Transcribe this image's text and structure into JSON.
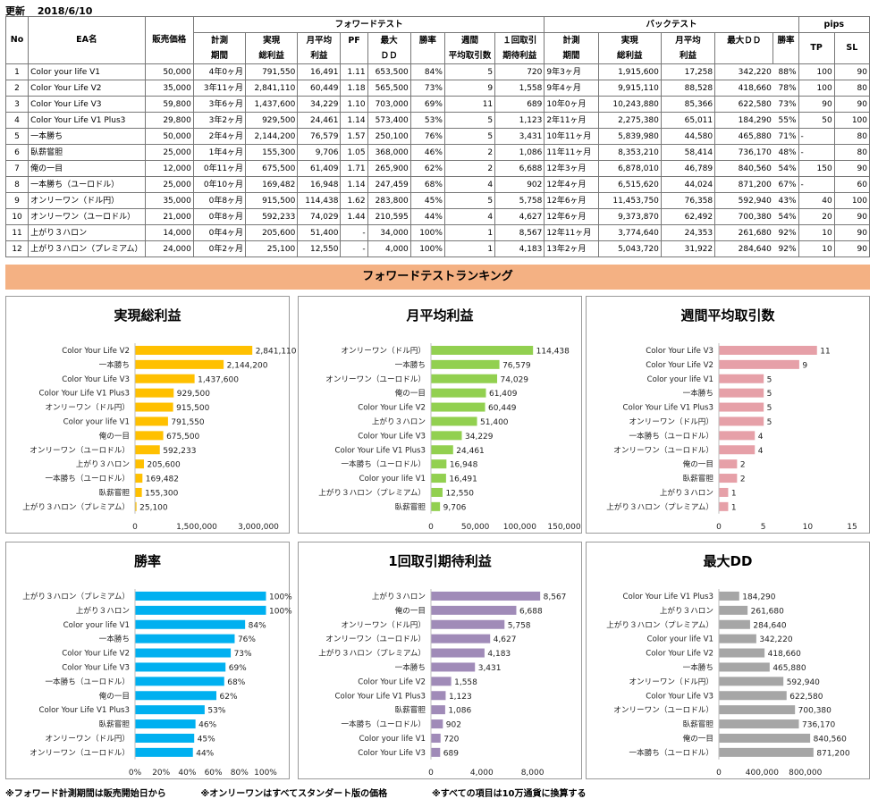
{
  "header": {
    "updated_label": "更新",
    "updated_date": "2018/6/10"
  },
  "table": {
    "group_headers": {
      "forward": "フォワードテスト",
      "back": "バックテスト",
      "pips": "pips"
    },
    "col_no": "No",
    "col_name": "EA名",
    "col_price": "販売価格",
    "fw_cols": [
      [
        "計測",
        "期間"
      ],
      [
        "実現",
        "総利益"
      ],
      [
        "月平均",
        "利益"
      ],
      [
        "PF",
        ""
      ],
      [
        "最大",
        "ＤＤ"
      ],
      [
        "勝率",
        ""
      ],
      [
        "週間",
        "平均取引数"
      ],
      [
        "１回取引",
        "期待利益"
      ]
    ],
    "bt_cols": [
      [
        "計測",
        "期間"
      ],
      [
        "実現",
        "総利益"
      ],
      [
        "月平均",
        "利益"
      ],
      [
        "最大ＤＤ",
        ""
      ],
      [
        "勝率",
        ""
      ]
    ],
    "pips_cols": [
      "TP",
      "SL"
    ],
    "rows": [
      {
        "no": "1",
        "name": "Color your life V1",
        "price": "50,000",
        "fw_period": "4年0ヶ月",
        "fw_profit": "791,550",
        "fw_monthly": "16,491",
        "pf": "1.11",
        "fw_dd": "653,500",
        "fw_win": "84%",
        "weekly": "5",
        "expected": "720",
        "bt_period": "9年3ヶ月",
        "bt_profit": "1,915,600",
        "bt_monthly": "17,258",
        "bt_dd": "342,220",
        "bt_win": "88%",
        "tp": "100",
        "sl": "90"
      },
      {
        "no": "2",
        "name": "Color Your Life V2",
        "price": "35,000",
        "fw_period": "3年11ヶ月",
        "fw_profit": "2,841,110",
        "fw_monthly": "60,449",
        "pf": "1.18",
        "fw_dd": "565,500",
        "fw_win": "73%",
        "weekly": "9",
        "expected": "1,558",
        "bt_period": "9年4ヶ月",
        "bt_profit": "9,915,110",
        "bt_monthly": "88,528",
        "bt_dd": "418,660",
        "bt_win": "78%",
        "tp": "100",
        "sl": "80"
      },
      {
        "no": "3",
        "name": "Color Your Life V3",
        "price": "59,800",
        "fw_period": "3年6ヶ月",
        "fw_profit": "1,437,600",
        "fw_monthly": "34,229",
        "pf": "1.10",
        "fw_dd": "703,000",
        "fw_win": "69%",
        "weekly": "11",
        "expected": "689",
        "bt_period": "10年0ヶ月",
        "bt_profit": "10,243,880",
        "bt_monthly": "85,366",
        "bt_dd": "622,580",
        "bt_win": "73%",
        "tp": "90",
        "sl": "90"
      },
      {
        "no": "4",
        "name": "Color Your Life V1 Plus3",
        "price": "29,800",
        "fw_period": "3年2ヶ月",
        "fw_profit": "929,500",
        "fw_monthly": "24,461",
        "pf": "1.14",
        "fw_dd": "573,400",
        "fw_win": "53%",
        "weekly": "5",
        "expected": "1,123",
        "bt_period": "2年11ヶ月",
        "bt_profit": "2,275,380",
        "bt_monthly": "65,011",
        "bt_dd": "184,290",
        "bt_win": "55%",
        "tp": "50",
        "sl": "100"
      },
      {
        "no": "5",
        "name": "一本勝ち",
        "price": "50,000",
        "fw_period": "2年4ヶ月",
        "fw_profit": "2,144,200",
        "fw_monthly": "76,579",
        "pf": "1.57",
        "fw_dd": "250,100",
        "fw_win": "76%",
        "weekly": "5",
        "expected": "3,431",
        "bt_period": "10年11ヶ月",
        "bt_profit": "5,839,980",
        "bt_monthly": "44,580",
        "bt_dd": "465,880",
        "bt_win": "71%",
        "tp": "-",
        "sl": "80"
      },
      {
        "no": "6",
        "name": "臥薪嘗胆",
        "price": "25,000",
        "fw_period": "1年4ヶ月",
        "fw_profit": "155,300",
        "fw_monthly": "9,706",
        "pf": "1.05",
        "fw_dd": "368,000",
        "fw_win": "46%",
        "weekly": "2",
        "expected": "1,086",
        "bt_period": "11年11ヶ月",
        "bt_profit": "8,353,210",
        "bt_monthly": "58,414",
        "bt_dd": "736,170",
        "bt_win": "48%",
        "tp": "-",
        "sl": "80"
      },
      {
        "no": "7",
        "name": "俺の一目",
        "price": "12,000",
        "fw_period": "0年11ヶ月",
        "fw_profit": "675,500",
        "fw_monthly": "61,409",
        "pf": "1.71",
        "fw_dd": "265,900",
        "fw_win": "62%",
        "weekly": "2",
        "expected": "6,688",
        "bt_period": "12年3ヶ月",
        "bt_profit": "6,878,010",
        "bt_monthly": "46,789",
        "bt_dd": "840,560",
        "bt_win": "54%",
        "tp": "150",
        "sl": "90"
      },
      {
        "no": "8",
        "name": "一本勝ち（ユーロドル）",
        "price": "25,000",
        "fw_period": "0年10ヶ月",
        "fw_profit": "169,482",
        "fw_monthly": "16,948",
        "pf": "1.14",
        "fw_dd": "247,459",
        "fw_win": "68%",
        "weekly": "4",
        "expected": "902",
        "bt_period": "12年4ヶ月",
        "bt_profit": "6,515,620",
        "bt_monthly": "44,024",
        "bt_dd": "871,200",
        "bt_win": "67%",
        "tp": "-",
        "sl": "60"
      },
      {
        "no": "9",
        "name": "オンリーワン（ドル円）",
        "price": "35,000",
        "fw_period": "0年8ヶ月",
        "fw_profit": "915,500",
        "fw_monthly": "114,438",
        "pf": "1.62",
        "fw_dd": "283,800",
        "fw_win": "45%",
        "weekly": "5",
        "expected": "5,758",
        "bt_period": "12年6ヶ月",
        "bt_profit": "11,453,750",
        "bt_monthly": "76,358",
        "bt_dd": "592,940",
        "bt_win": "43%",
        "tp": "40",
        "sl": "100"
      },
      {
        "no": "10",
        "name": "オンリーワン（ユーロドル）",
        "price": "21,000",
        "fw_period": "0年8ヶ月",
        "fw_profit": "592,233",
        "fw_monthly": "74,029",
        "pf": "1.44",
        "fw_dd": "210,595",
        "fw_win": "44%",
        "weekly": "4",
        "expected": "4,627",
        "bt_period": "12年6ヶ月",
        "bt_profit": "9,373,870",
        "bt_monthly": "62,492",
        "bt_dd": "700,380",
        "bt_win": "54%",
        "tp": "20",
        "sl": "90"
      },
      {
        "no": "11",
        "name": "上がり３ハロン",
        "price": "14,000",
        "fw_period": "0年4ヶ月",
        "fw_profit": "205,600",
        "fw_monthly": "51,400",
        "pf": "-",
        "fw_dd": "34,000",
        "fw_win": "100%",
        "weekly": "1",
        "expected": "8,567",
        "bt_period": "12年11ヶ月",
        "bt_profit": "3,774,640",
        "bt_monthly": "24,353",
        "bt_dd": "261,680",
        "bt_win": "92%",
        "tp": "10",
        "sl": "90"
      },
      {
        "no": "12",
        "name": "上がり３ハロン（プレミアム）",
        "price": "24,000",
        "fw_period": "0年2ヶ月",
        "fw_profit": "25,100",
        "fw_monthly": "12,550",
        "pf": "-",
        "fw_dd": "4,000",
        "fw_win": "100%",
        "weekly": "1",
        "expected": "4,183",
        "bt_period": "13年2ヶ月",
        "bt_profit": "5,043,720",
        "bt_monthly": "31,922",
        "bt_dd": "284,640",
        "bt_win": "92%",
        "tp": "10",
        "sl": "90"
      }
    ]
  },
  "banner": "フォワードテストランキング",
  "footnotes": [
    "※フォワード計測期間は販売開始日から",
    "※オンリーワンはすべてスタンダート版の価格",
    "※すべての項目は10万通貨に換算する"
  ],
  "chart_data": [
    {
      "id": "c1",
      "type": "bar",
      "orientation": "horizontal",
      "title": "実現総利益",
      "color": "#ffc000",
      "categories": [
        "Color Your Life V2",
        "一本勝ち",
        "Color Your Life V3",
        "Color Your Life V1 Plus3",
        "オンリーワン（ドル円）",
        "Color your life V1",
        "俺の一目",
        "オンリーワン（ユーロドル）",
        "上がり３ハロン",
        "一本勝ち（ユーロドル）",
        "臥薪嘗胆",
        "上がり３ハロン（プレミアム）"
      ],
      "values": [
        2841110,
        2144200,
        1437600,
        929500,
        915500,
        791550,
        675500,
        592233,
        205600,
        169482,
        155300,
        25100
      ],
      "labels": [
        "2,841,110",
        "2,144,200",
        "1,437,600",
        "929,500",
        "915,500",
        "791,550",
        "675,500",
        "592,233",
        "205,600",
        "169,482",
        "155,300",
        "25,100"
      ],
      "xlim": [
        0,
        3000000
      ],
      "ticks": [
        0,
        1500000,
        3000000
      ],
      "tick_labels": [
        "0",
        "1,500,000",
        "3,000,000"
      ]
    },
    {
      "id": "c2",
      "type": "bar",
      "orientation": "horizontal",
      "title": "月平均利益",
      "color": "#92d050",
      "categories": [
        "オンリーワン（ドル円）",
        "一本勝ち",
        "オンリーワン（ユーロドル）",
        "俺の一目",
        "Color Your Life V2",
        "上がり３ハロン",
        "Color Your Life V3",
        "Color Your Life V1 Plus3",
        "一本勝ち（ユーロドル）",
        "Color your life V1",
        "上がり３ハロン（プレミアム）",
        "臥薪嘗胆"
      ],
      "values": [
        114438,
        76579,
        74029,
        61409,
        60449,
        51400,
        34229,
        24461,
        16948,
        16491,
        12550,
        9706
      ],
      "labels": [
        "114,438",
        "76,579",
        "74,029",
        "61,409",
        "60,449",
        "51,400",
        "34,229",
        "24,461",
        "16,948",
        "16,491",
        "12,550",
        "9,706"
      ],
      "xlim": [
        0,
        150000
      ],
      "ticks": [
        0,
        50000,
        100000,
        150000
      ],
      "tick_labels": [
        "0",
        "50,000",
        "100,000",
        "150,000"
      ]
    },
    {
      "id": "c3",
      "type": "bar",
      "orientation": "horizontal",
      "title": "週間平均取引数",
      "color": "#e6a0a8",
      "categories": [
        "Color Your Life V3",
        "Color Your Life V2",
        "Color your life V1",
        "一本勝ち",
        "Color Your Life V1 Plus3",
        "オンリーワン（ドル円）",
        "一本勝ち（ユーロドル）",
        "オンリーワン（ユーロドル）",
        "俺の一目",
        "臥薪嘗胆",
        "上がり３ハロン",
        "上がり３ハロン（プレミアム）"
      ],
      "values": [
        11,
        9,
        5,
        5,
        5,
        5,
        4,
        4,
        2,
        2,
        1,
        1
      ],
      "labels": [
        "11",
        "9",
        "5",
        "5",
        "5",
        "5",
        "4",
        "4",
        "2",
        "2",
        "1",
        "1"
      ],
      "xlim": [
        0,
        15
      ],
      "ticks": [
        0,
        5,
        10,
        15
      ],
      "tick_labels": [
        "0",
        "5",
        "10",
        "15"
      ]
    },
    {
      "id": "c4",
      "type": "bar",
      "orientation": "horizontal",
      "title": "勝率",
      "color": "#00b0f0",
      "categories": [
        "上がり３ハロン（プレミアム）",
        "上がり３ハロン",
        "Color your life V1",
        "一本勝ち",
        "Color Your Life V2",
        "Color Your Life V3",
        "一本勝ち（ユーロドル）",
        "俺の一目",
        "Color Your Life V1 Plus3",
        "臥薪嘗胆",
        "オンリーワン（ドル円）",
        "オンリーワン（ユーロドル）"
      ],
      "values": [
        100,
        100,
        84,
        76,
        73,
        69,
        68,
        62,
        53,
        46,
        45,
        44
      ],
      "labels": [
        "100%",
        "100%",
        "84%",
        "76%",
        "73%",
        "69%",
        "68%",
        "62%",
        "53%",
        "46%",
        "45%",
        "44%"
      ],
      "xlim": [
        0,
        100
      ],
      "ticks": [
        0,
        20,
        40,
        60,
        80,
        100
      ],
      "tick_labels": [
        "0%",
        "20%",
        "40%",
        "60%",
        "80%",
        "100%"
      ]
    },
    {
      "id": "c5",
      "type": "bar",
      "orientation": "horizontal",
      "title": "1回取引期待利益",
      "color": "#a08bb8",
      "categories": [
        "上がり３ハロン",
        "俺の一目",
        "オンリーワン（ドル円）",
        "オンリーワン（ユーロドル）",
        "上がり３ハロン（プレミアム）",
        "一本勝ち",
        "Color Your Life V2",
        "Color Your Life V1 Plus3",
        "臥薪嘗胆",
        "一本勝ち（ユーロドル）",
        "Color your life V1",
        "Color Your Life V3"
      ],
      "values": [
        8567,
        6688,
        5758,
        4627,
        4183,
        3431,
        1558,
        1123,
        1086,
        902,
        720,
        689
      ],
      "labels": [
        "8,567",
        "6,688",
        "5,758",
        "4,627",
        "4,183",
        "3,431",
        "1,558",
        "1,123",
        "1,086",
        "902",
        "720",
        "689"
      ],
      "xlim": [
        0,
        10000
      ],
      "ticks": [
        0,
        4000,
        8000
      ],
      "tick_labels": [
        "0",
        "4,000",
        "8,000"
      ]
    },
    {
      "id": "c6",
      "type": "bar",
      "orientation": "horizontal",
      "title": "最大DD",
      "color": "#a6a6a6",
      "categories": [
        "Color Your Life V1 Plus3",
        "上がり３ハロン",
        "上がり３ハロン（プレミアム）",
        "Color your life V1",
        "Color Your Life V2",
        "一本勝ち",
        "オンリーワン（ドル円）",
        "Color Your Life V3",
        "オンリーワン（ユーロドル）",
        "臥薪嘗胆",
        "俺の一目",
        "一本勝ち（ユーロドル）"
      ],
      "values": [
        184290,
        261680,
        284640,
        342220,
        418660,
        465880,
        592940,
        622580,
        700380,
        736170,
        840560,
        871200
      ],
      "labels": [
        "184,290",
        "261,680",
        "284,640",
        "342,220",
        "418,660",
        "465,880",
        "592,940",
        "622,580",
        "700,380",
        "736,170",
        "840,560",
        "871,200"
      ],
      "xlim": [
        0,
        1100000
      ],
      "ticks": [
        0,
        400000,
        800000
      ],
      "tick_labels": [
        "0",
        "400,000",
        "800,000"
      ]
    }
  ]
}
